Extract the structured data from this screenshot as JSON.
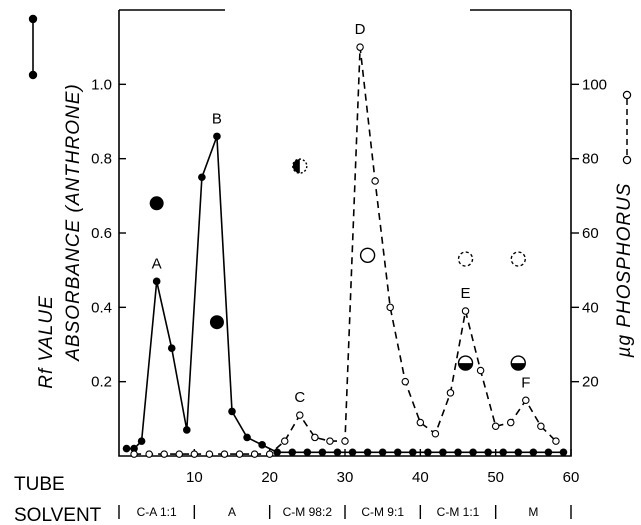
{
  "chart_data": {
    "type": "line",
    "xlabel": "TUBE",
    "x_ticks": [
      10,
      20,
      30,
      40,
      50,
      60
    ],
    "xlim": [
      0,
      60
    ],
    "left_axis": {
      "labels": [
        "Rf VALUE",
        "ABSORBANCE (ANTHRONE)"
      ],
      "ylim": [
        0,
        1.2
      ],
      "ticks": [
        "0.2",
        "0.4",
        "0.6",
        "0.8",
        "1.0"
      ]
    },
    "right_axis": {
      "label": "µg PHOSPHORUS",
      "ylim": [
        0,
        120
      ],
      "ticks": [
        "20",
        "40",
        "60",
        "80",
        "100"
      ]
    },
    "series": [
      {
        "axis": "left",
        "style": "solid-filled",
        "x": [
          1,
          2,
          3,
          5,
          7,
          9,
          11,
          13,
          15,
          17,
          19,
          21,
          23,
          25,
          27,
          29,
          31,
          33,
          35,
          37,
          39,
          41,
          43,
          45,
          47,
          49,
          51,
          53,
          55,
          57,
          59
        ],
        "y": [
          0.02,
          0.02,
          0.04,
          0.47,
          0.29,
          0.07,
          0.75,
          0.86,
          0.12,
          0.05,
          0.03,
          0.01,
          0.01,
          0.01,
          0.01,
          0.01,
          0.01,
          0.01,
          0.01,
          0.01,
          0.01,
          0.01,
          0.01,
          0.01,
          0.01,
          0.01,
          0.01,
          0.01,
          0.01,
          0.01,
          0.01
        ]
      },
      {
        "axis": "right",
        "style": "dashed-open",
        "x": [
          2,
          4,
          6,
          8,
          10,
          12,
          14,
          16,
          18,
          20,
          22,
          24,
          26,
          28,
          30,
          32,
          34,
          36,
          38,
          40,
          42,
          44,
          46,
          48,
          50,
          52,
          54,
          56,
          58
        ],
        "y": [
          0.5,
          0.5,
          0.5,
          0.5,
          0.5,
          0.5,
          0.5,
          0.5,
          0.5,
          0.5,
          4,
          11,
          5,
          4,
          4,
          110,
          74,
          40,
          20,
          9,
          6,
          17,
          39,
          23,
          8,
          9,
          15,
          8,
          4
        ]
      }
    ],
    "peak_labels": [
      {
        "text": "A",
        "x": 5,
        "y": 0.47,
        "axis": "left"
      },
      {
        "text": "B",
        "x": 13,
        "y": 0.86,
        "axis": "left"
      },
      {
        "text": "C",
        "x": 24,
        "y": 11,
        "axis": "right"
      },
      {
        "text": "D",
        "x": 32,
        "y": 110,
        "axis": "right"
      },
      {
        "text": "E",
        "x": 46,
        "y": 39,
        "axis": "right"
      },
      {
        "text": "F",
        "x": 54,
        "y": 15,
        "axis": "right"
      }
    ],
    "rf_markers": [
      {
        "x": 5,
        "y": 0.68,
        "style": "filled"
      },
      {
        "x": 13,
        "y": 0.36,
        "style": "filled"
      },
      {
        "x": 24,
        "y": 0.78,
        "style": "half-dotted"
      },
      {
        "x": 33,
        "y": 0.54,
        "style": "open"
      },
      {
        "x": 46,
        "y": 0.53,
        "style": "dashed-open"
      },
      {
        "x": 53,
        "y": 0.53,
        "style": "dashed-open"
      },
      {
        "x": 46,
        "y": 0.25,
        "style": "half-filled"
      },
      {
        "x": 53,
        "y": 0.25,
        "style": "half-filled"
      }
    ],
    "solvent": {
      "label": "SOLVENT",
      "segments": [
        {
          "text": "C-A 1:1",
          "from": 0,
          "to": 10
        },
        {
          "text": "A",
          "from": 10,
          "to": 20
        },
        {
          "text": "C-M 98:2",
          "from": 20,
          "to": 30
        },
        {
          "text": "C-M 9:1",
          "from": 30,
          "to": 40
        },
        {
          "text": "C-M 1:1",
          "from": 40,
          "to": 50
        },
        {
          "text": "M",
          "from": 50,
          "to": 60
        }
      ]
    }
  }
}
